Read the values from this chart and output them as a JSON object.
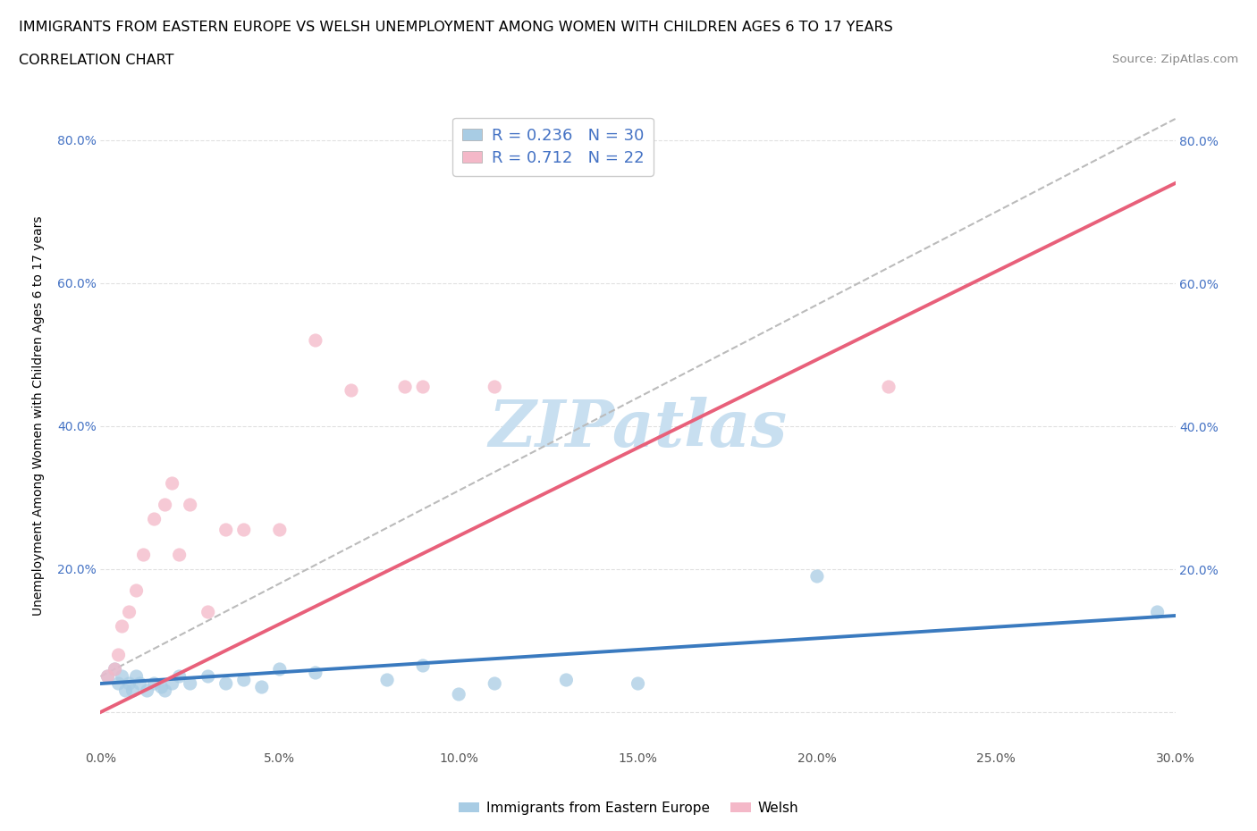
{
  "title": "IMMIGRANTS FROM EASTERN EUROPE VS WELSH UNEMPLOYMENT AMONG WOMEN WITH CHILDREN AGES 6 TO 17 YEARS",
  "subtitle": "CORRELATION CHART",
  "source": "Source: ZipAtlas.com",
  "ylabel": "Unemployment Among Women with Children Ages 6 to 17 years",
  "xlim": [
    0.0,
    0.3
  ],
  "ylim": [
    -0.05,
    0.88
  ],
  "xtick_labels": [
    "0.0%",
    "",
    "5.0%",
    "",
    "10.0%",
    "",
    "15.0%",
    "",
    "20.0%",
    "",
    "25.0%",
    "",
    "30.0%"
  ],
  "xtick_values": [
    0.0,
    0.025,
    0.05,
    0.075,
    0.1,
    0.125,
    0.15,
    0.175,
    0.2,
    0.225,
    0.25,
    0.275,
    0.3
  ],
  "ytick_labels": [
    "",
    "20.0%",
    "40.0%",
    "60.0%",
    "80.0%"
  ],
  "ytick_values": [
    0.0,
    0.2,
    0.4,
    0.6,
    0.8
  ],
  "ytick_labels_right": [
    "",
    "20.0%",
    "40.0%",
    "60.0%",
    "80.0%"
  ],
  "blue_R": "0.236",
  "blue_N": "30",
  "pink_R": "0.712",
  "pink_N": "22",
  "blue_scatter_x": [
    0.002,
    0.004,
    0.005,
    0.006,
    0.007,
    0.008,
    0.009,
    0.01,
    0.011,
    0.013,
    0.015,
    0.017,
    0.018,
    0.02,
    0.022,
    0.025,
    0.03,
    0.035,
    0.04,
    0.045,
    0.05,
    0.06,
    0.08,
    0.09,
    0.1,
    0.11,
    0.13,
    0.15,
    0.2,
    0.295
  ],
  "blue_scatter_y": [
    0.05,
    0.06,
    0.04,
    0.05,
    0.03,
    0.04,
    0.03,
    0.05,
    0.04,
    0.03,
    0.04,
    0.035,
    0.03,
    0.04,
    0.05,
    0.04,
    0.05,
    0.04,
    0.045,
    0.035,
    0.06,
    0.055,
    0.045,
    0.065,
    0.025,
    0.04,
    0.045,
    0.04,
    0.19,
    0.14
  ],
  "pink_scatter_x": [
    0.002,
    0.004,
    0.005,
    0.006,
    0.008,
    0.01,
    0.012,
    0.015,
    0.018,
    0.02,
    0.022,
    0.025,
    0.03,
    0.035,
    0.04,
    0.05,
    0.06,
    0.07,
    0.085,
    0.09,
    0.11,
    0.22
  ],
  "pink_scatter_y": [
    0.05,
    0.06,
    0.08,
    0.12,
    0.14,
    0.17,
    0.22,
    0.27,
    0.29,
    0.32,
    0.22,
    0.29,
    0.14,
    0.255,
    0.255,
    0.255,
    0.52,
    0.45,
    0.455,
    0.455,
    0.455,
    0.455
  ],
  "blue_line_x": [
    0.0,
    0.3
  ],
  "blue_line_y": [
    0.04,
    0.135
  ],
  "pink_line_x": [
    0.0,
    0.3
  ],
  "pink_line_y": [
    0.0,
    0.74
  ],
  "dashed_line_x": [
    0.0,
    0.3
  ],
  "dashed_line_y": [
    0.05,
    0.83
  ],
  "blue_color": "#a8cce4",
  "pink_color": "#f4b8c8",
  "blue_line_color": "#3a7abf",
  "pink_line_color": "#e8607a",
  "dashed_line_color": "#bbbbbb",
  "legend_blue_color": "#4472c4",
  "legend_text_color": "#4472c4",
  "watermark_text": "ZIPatlas",
  "watermark_color": "#c8dff0",
  "background_color": "#ffffff",
  "grid_color": "#e0e0e0",
  "bottom_legend_labels": [
    "Immigrants from Eastern Europe",
    "Welsh"
  ]
}
